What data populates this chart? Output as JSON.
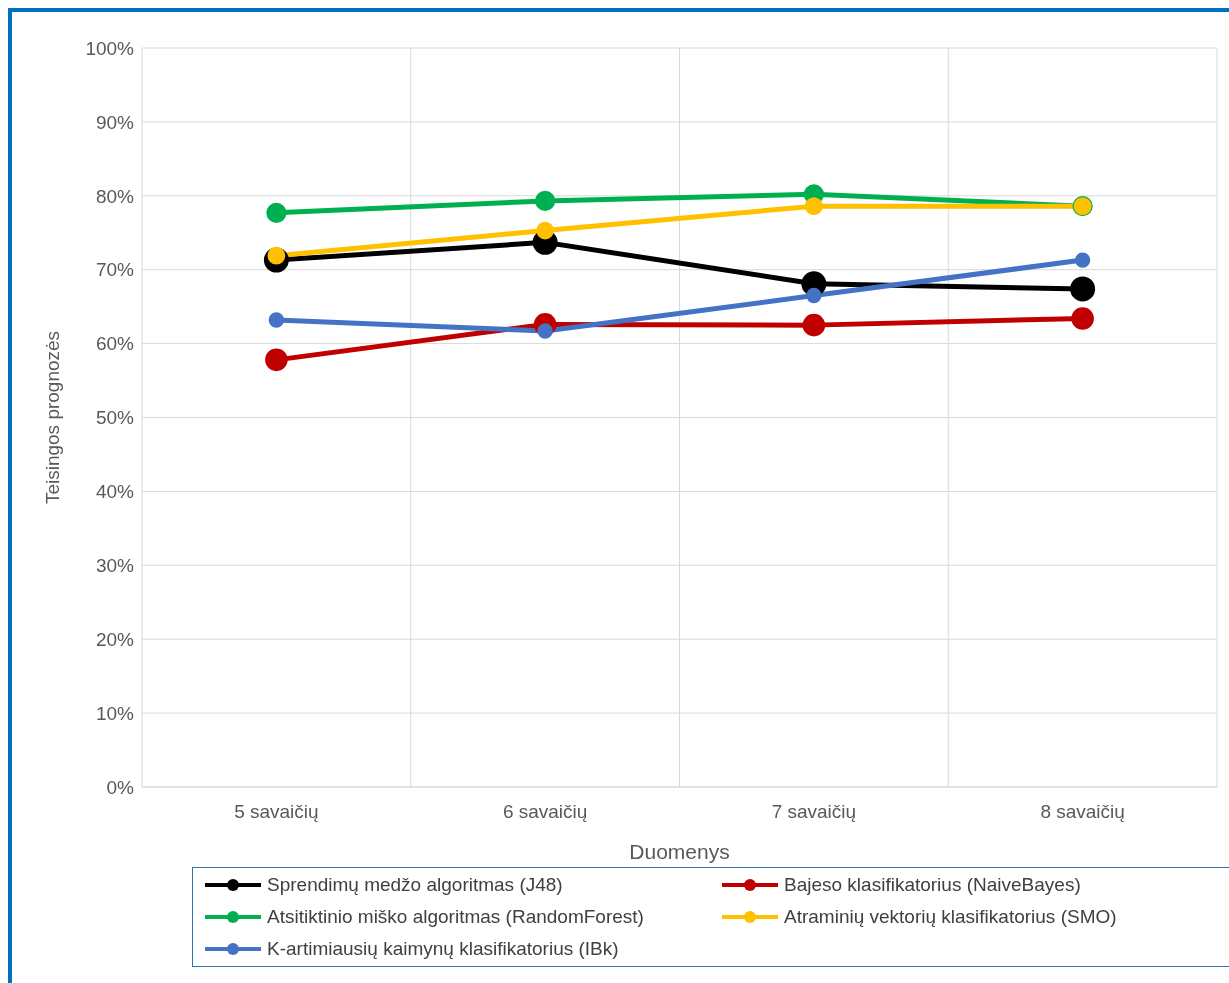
{
  "chart_data": {
    "type": "line",
    "xlabel": "Duomenys",
    "ylabel": "Teisingos prognozės",
    "categories": [
      "5 savaičių",
      "6 savaičių",
      "7 savaičių",
      "8 savaičių"
    ],
    "series": [
      {
        "name": "Sprendimų medžo algoritmas (J48)",
        "color": "#000000",
        "values": [
          71.3,
          73.7,
          68.1,
          67.4
        ]
      },
      {
        "name": "Bajeso klasifikatorius (NaiveBayes)",
        "color": "#c00000",
        "values": [
          57.8,
          62.6,
          62.5,
          63.4
        ]
      },
      {
        "name": "Atsitiktinio miško algoritmas (RandomForest)",
        "color": "#00b050",
        "values": [
          77.7,
          79.3,
          80.2,
          78.6
        ]
      },
      {
        "name": "Atraminių vektorių klasifikatorius (SMO)",
        "color": "#ffc000",
        "values": [
          71.9,
          75.3,
          78.6,
          78.6
        ]
      },
      {
        "name": "K-artimiausių kaimynų klasifikatorius (IBk)",
        "color": "#4472c4",
        "values": [
          63.2,
          61.7,
          66.5,
          71.3
        ]
      }
    ],
    "ylim": [
      0,
      100
    ],
    "yticks": [
      {
        "value": 0,
        "label": "0%"
      },
      {
        "value": 10,
        "label": "10%"
      },
      {
        "value": 20,
        "label": "20%"
      },
      {
        "value": 30,
        "label": "30%"
      },
      {
        "value": 40,
        "label": "40%"
      },
      {
        "value": 50,
        "label": "50%"
      },
      {
        "value": 60,
        "label": "60%"
      },
      {
        "value": 70,
        "label": "70%"
      },
      {
        "value": 80,
        "label": "80%"
      },
      {
        "value": 90,
        "label": "90%"
      },
      {
        "value": 100,
        "label": "100%"
      }
    ],
    "grid": true,
    "legend": "bottom",
    "marker": "circle",
    "line_style": "solid"
  }
}
